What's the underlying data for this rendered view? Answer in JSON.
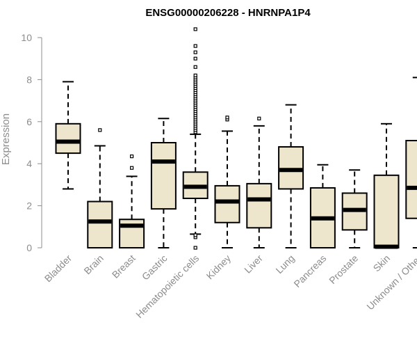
{
  "chart_data": {
    "type": "box",
    "title": "ENSG00000206228 - HNRNPA1P4",
    "ylabel": "Expression",
    "xlabel": "",
    "ylim": [
      0,
      10.4
    ],
    "yticks": [
      0,
      2,
      4,
      6,
      8,
      10
    ],
    "box_fill": "#ede6cc",
    "categories": [
      "Bladder",
      "Brain",
      "Breast",
      "Gastric",
      "Hematopoietic cells",
      "Kidney",
      "Liver",
      "Lung",
      "Pancreas",
      "Prostate",
      "Skin",
      "Unknown / Other"
    ],
    "boxes": [
      {
        "q1": 4.5,
        "median": 5.05,
        "q3": 5.9,
        "whisker_low": 2.8,
        "whisker_high": 7.9,
        "outliers": []
      },
      {
        "q1": 0,
        "median": 1.25,
        "q3": 2.2,
        "whisker_low": 0,
        "whisker_high": 4.85,
        "outliers": [
          5.6
        ]
      },
      {
        "q1": 0,
        "median": 1.05,
        "q3": 1.35,
        "whisker_low": 0,
        "whisker_high": 3.4,
        "outliers": [
          3.8,
          4.35
        ]
      },
      {
        "q1": 1.85,
        "median": 4.1,
        "q3": 5.0,
        "whisker_low": 0,
        "whisker_high": 6.15,
        "outliers": []
      },
      {
        "q1": 2.35,
        "median": 2.9,
        "q3": 3.6,
        "whisker_low": 0.65,
        "whisker_high": 5.4,
        "outliers": [
          0,
          0.5,
          0.6,
          5.5,
          5.6,
          5.7,
          5.8,
          5.9,
          6.0,
          6.1,
          6.2,
          6.3,
          6.4,
          6.5,
          6.6,
          6.7,
          6.8,
          6.9,
          7.0,
          7.1,
          7.2,
          7.3,
          7.4,
          7.5,
          7.6,
          7.7,
          7.8,
          7.9,
          8.0,
          8.1,
          8.2,
          8.6,
          9.0,
          9.3,
          9.6,
          10.4
        ]
      },
      {
        "q1": 1.2,
        "median": 2.2,
        "q3": 2.95,
        "whisker_low": 0,
        "whisker_high": 5.55,
        "outliers": [
          6.1,
          6.2
        ]
      },
      {
        "q1": 0.95,
        "median": 2.3,
        "q3": 3.05,
        "whisker_low": 0,
        "whisker_high": 5.8,
        "outliers": [
          6.15
        ]
      },
      {
        "q1": 2.8,
        "median": 3.7,
        "q3": 4.8,
        "whisker_low": 0,
        "whisker_high": 6.8,
        "outliers": []
      },
      {
        "q1": 0,
        "median": 1.4,
        "q3": 2.85,
        "whisker_low": 0,
        "whisker_high": 3.95,
        "outliers": []
      },
      {
        "q1": 0.85,
        "median": 1.8,
        "q3": 2.6,
        "whisker_low": 0,
        "whisker_high": 3.7,
        "outliers": []
      },
      {
        "q1": 0,
        "median": 0.05,
        "q3": 3.45,
        "whisker_low": 0,
        "whisker_high": 5.9,
        "outliers": []
      },
      {
        "q1": 1.4,
        "median": 2.85,
        "q3": 5.1,
        "whisker_low": 0,
        "whisker_high": 8.1,
        "outliers": []
      }
    ]
  }
}
